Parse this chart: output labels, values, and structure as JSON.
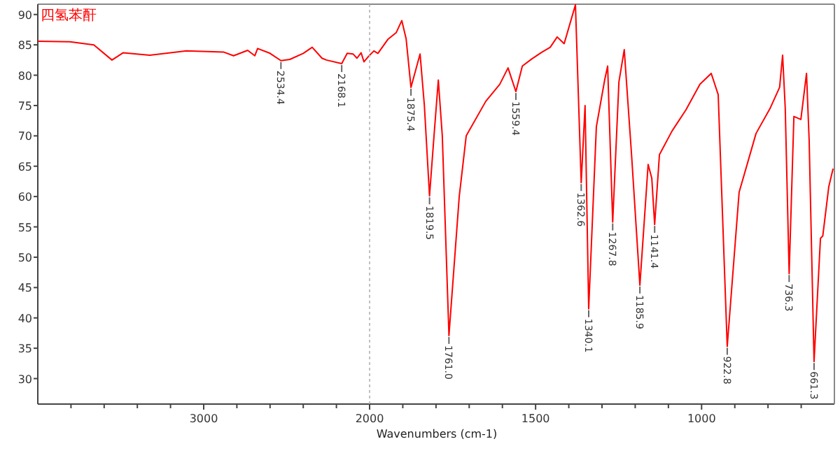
{
  "chart_data": [
    {
      "type": "line",
      "title": "四氢苯酐",
      "xlim": [
        4000,
        2000
      ],
      "ylim": [
        25.8,
        91.7
      ],
      "xticks": [
        {
          "value": 3800,
          "label": null
        },
        {
          "value": 3600,
          "label": null
        },
        {
          "value": 3400,
          "label": null
        },
        {
          "value": 3200,
          "label": null
        },
        3000,
        {
          "value": 2800,
          "label": null
        },
        {
          "value": 2600,
          "label": null
        },
        {
          "value": 2400,
          "label": null
        },
        {
          "value": 2200,
          "label": null
        },
        2000
      ],
      "yticks": [
        30,
        35,
        40,
        45,
        50,
        55,
        60,
        65,
        70,
        75,
        80,
        85,
        90
      ],
      "series": [
        {
          "color": "#ff0000",
          "x": [
            4000,
            3806,
            3662,
            3553,
            3485,
            3325,
            3105,
            2878,
            2820,
            2735,
            2692,
            2675,
            2600,
            2534.4,
            2481,
            2400,
            2346,
            2287,
            2260,
            2168.1,
            2135,
            2100,
            2076,
            2051,
            2034,
            2000
          ],
          "values": [
            85.6,
            85.5,
            85.0,
            82.5,
            83.7,
            83.3,
            84.0,
            83.8,
            83.2,
            84.1,
            83.2,
            84.4,
            83.6,
            82.4,
            82.6,
            83.6,
            84.6,
            82.8,
            82.5,
            81.9,
            83.6,
            83.5,
            82.8,
            83.7,
            82.2,
            83.3
          ]
        }
      ],
      "annotations": [
        {
          "text": "2534.4",
          "x": 2534.4,
          "y": 82.4
        },
        {
          "text": "2168.1",
          "x": 2168.1,
          "y": 81.9
        }
      ]
    },
    {
      "type": "line",
      "xlabel": "Wavenumbers (cm-1)",
      "tick_labels": "x",
      "xlim": [
        2000,
        600
      ],
      "ylim": [
        25.8,
        91.7
      ],
      "xticks": [
        {
          "value": 1900,
          "label": null
        },
        {
          "value": 1800,
          "label": null
        },
        {
          "value": 1700,
          "label": null
        },
        {
          "value": 1600,
          "label": null
        },
        1500,
        {
          "value": 1400,
          "label": null
        },
        {
          "value": 1300,
          "label": null
        },
        {
          "value": 1200,
          "label": null
        },
        {
          "value": 1100,
          "label": null
        },
        1000,
        {
          "value": 900,
          "label": null
        },
        {
          "value": 800,
          "label": null
        },
        {
          "value": 700,
          "label": null
        }
      ],
      "ref_lines": [
        {
          "axis": "x",
          "value": 2000,
          "line_style": "dotted",
          "color": "#c0c0c0"
        }
      ],
      "series": [
        {
          "color": "#ff0000",
          "x": [
            2000,
            1987,
            1975,
            1945,
            1920,
            1903,
            1890,
            1875.4,
            1848,
            1835,
            1819.5,
            1806,
            1793,
            1781,
            1761.0,
            1730,
            1709,
            1650,
            1608,
            1583,
            1559.4,
            1540,
            1511,
            1481,
            1456,
            1435,
            1414,
            1380,
            1362.6,
            1351,
            1340.1,
            1317,
            1292,
            1283,
            1267.8,
            1249,
            1233,
            1211,
            1185.9,
            1161,
            1150,
            1141.4,
            1127,
            1089,
            1047,
            1005,
            971,
            950,
            922.8,
            887,
            836,
            794,
            765,
            756,
            748,
            736.3,
            722,
            701,
            684,
            676,
            661.3,
            642,
            635,
            617,
            604
          ],
          "values": [
            83.3,
            84.0,
            83.6,
            85.9,
            87.0,
            89.0,
            86.0,
            78.0,
            83.5,
            75.0,
            60.1,
            70.0,
            79.2,
            70.0,
            37.1,
            60.0,
            70.0,
            75.7,
            78.5,
            81.2,
            77.3,
            81.5,
            82.7,
            83.8,
            84.6,
            86.3,
            85.2,
            91.6,
            62.3,
            75.0,
            41.5,
            71.5,
            79.2,
            81.5,
            55.8,
            78.9,
            84.2,
            66.9,
            45.4,
            65.3,
            63.0,
            55.4,
            66.9,
            70.8,
            74.3,
            78.5,
            80.3,
            76.8,
            35.3,
            60.7,
            70.4,
            74.5,
            78.0,
            83.3,
            74.5,
            47.3,
            73.2,
            72.7,
            80.3,
            69.2,
            32.8,
            53.1,
            53.5,
            61.6,
            64.6
          ]
        }
      ],
      "annotations": [
        {
          "text": "1875.4",
          "x": 1875.4,
          "y": 78.0
        },
        {
          "text": "1819.5",
          "x": 1819.5,
          "y": 60.1
        },
        {
          "text": "1761.0",
          "x": 1761.0,
          "y": 37.1
        },
        {
          "text": "1559.4",
          "x": 1559.4,
          "y": 77.3
        },
        {
          "text": "1362.6",
          "x": 1362.6,
          "y": 62.3
        },
        {
          "text": "1340.1",
          "x": 1340.1,
          "y": 41.5
        },
        {
          "text": "1267.8",
          "x": 1267.8,
          "y": 55.8
        },
        {
          "text": "1185.9",
          "x": 1185.9,
          "y": 45.4
        },
        {
          "text": "1141.4",
          "x": 1141.4,
          "y": 55.4
        },
        {
          "text": "922.8",
          "x": 922.8,
          "y": 35.3
        },
        {
          "text": "736.3",
          "x": 736.3,
          "y": 47.3
        },
        {
          "text": "661.3",
          "x": 661.3,
          "y": 32.8
        }
      ]
    }
  ]
}
